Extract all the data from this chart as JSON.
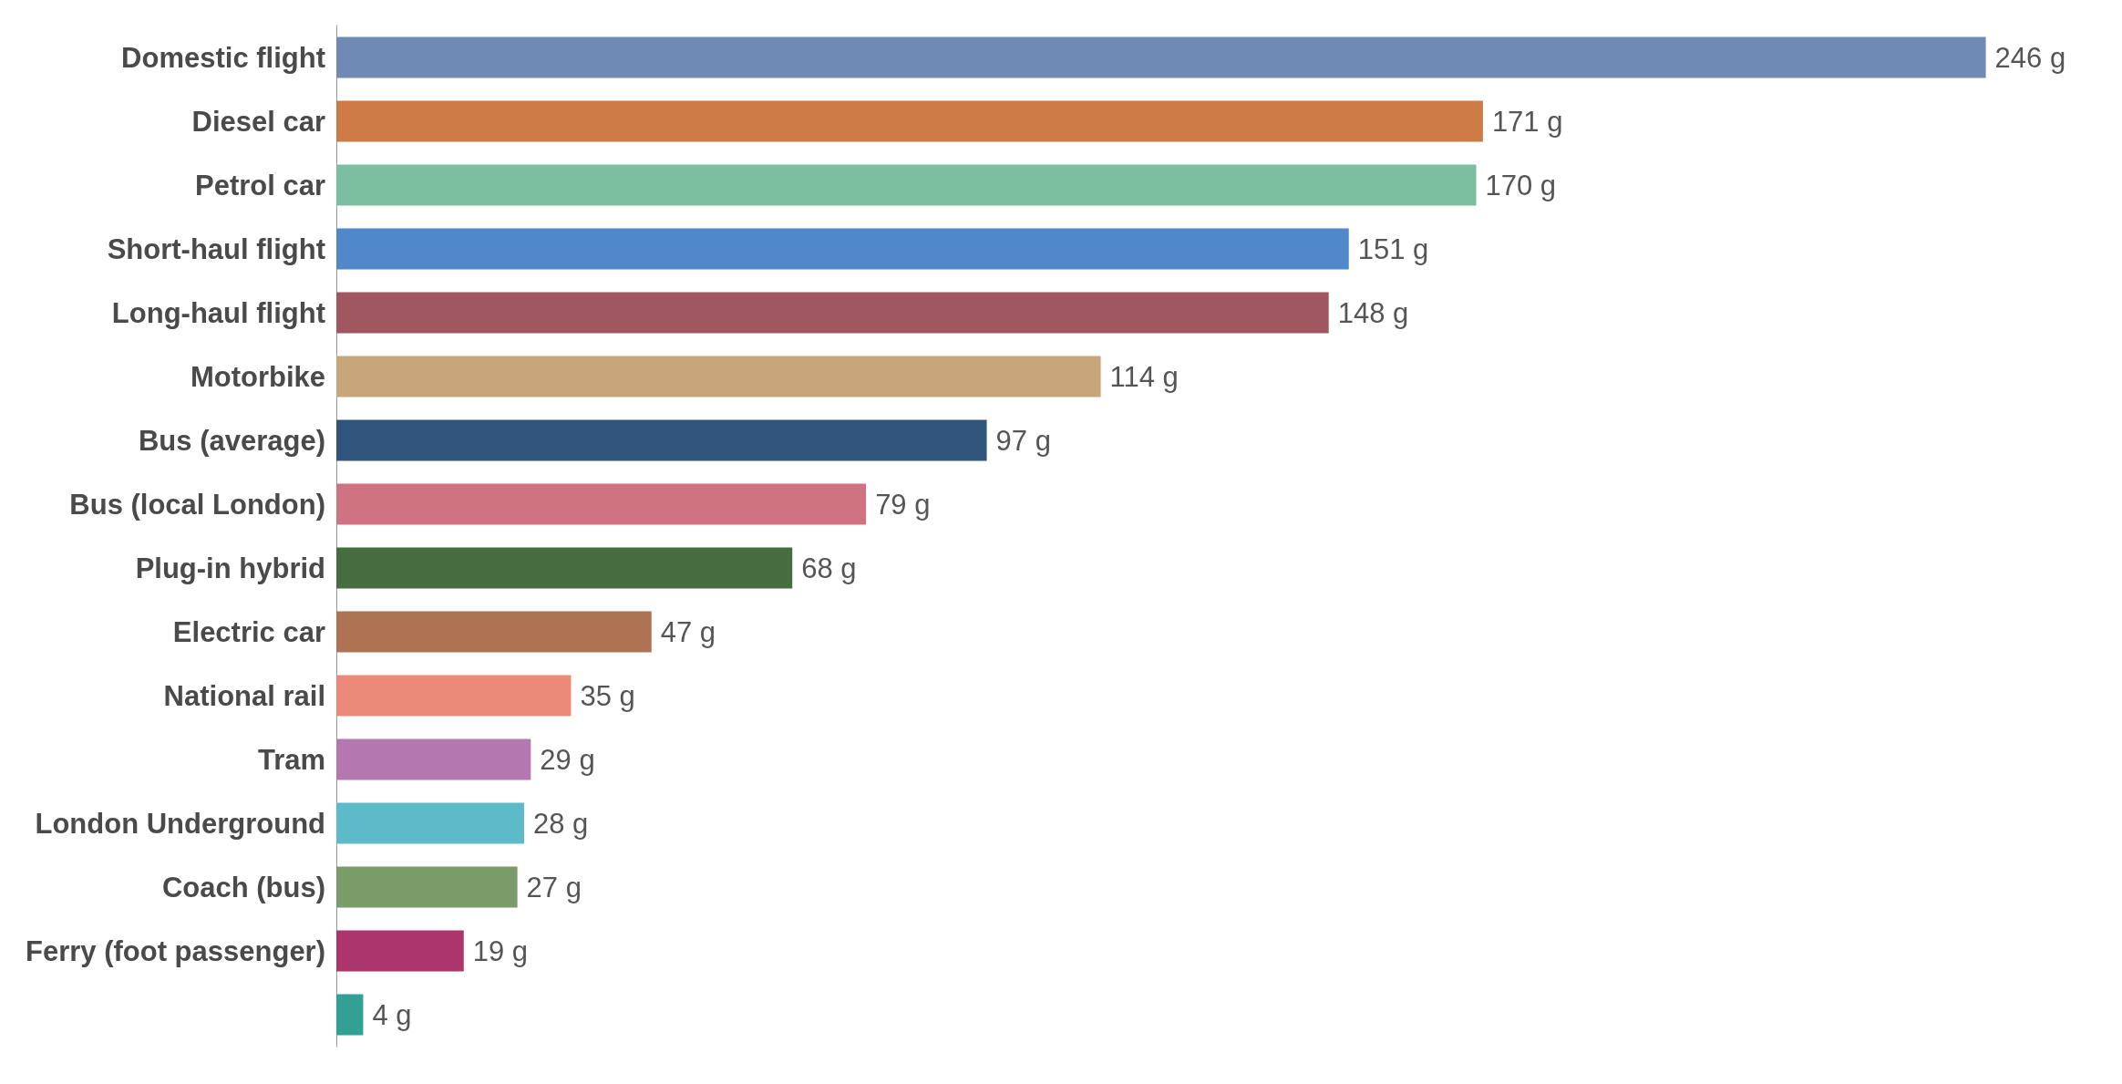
{
  "chart_data": {
    "type": "bar",
    "orientation": "horizontal",
    "categories": [
      "Domestic flight",
      "Diesel car",
      "Petrol car",
      "Short-haul flight",
      "Long-haul flight",
      "Motorbike",
      "Bus (average)",
      "Bus (local London)",
      "Plug-in hybrid",
      "Electric car",
      "National rail",
      "Tram",
      "London Underground",
      "Coach (bus)",
      "Ferry (foot passenger)",
      null
    ],
    "values": [
      246,
      171,
      170,
      151,
      148,
      114,
      97,
      79,
      68,
      47,
      35,
      29,
      28,
      27,
      19,
      4
    ],
    "value_labels": [
      "246 g",
      "171 g",
      "170 g",
      "151 g",
      "148 g",
      "114 g",
      "97 g",
      "79 g",
      "68 g",
      "47 g",
      "35 g",
      "29 g",
      "28 g",
      "27 g",
      "19 g",
      "4 g"
    ],
    "colors": [
      "#6f8ab5",
      "#cd7a45",
      "#7bbfa0",
      "#5188c9",
      "#a0575f",
      "#c8a67a",
      "#30547c",
      "#cf7282",
      "#476c3f",
      "#ae7352",
      "#ec8a7a",
      "#b577b0",
      "#5dbac8",
      "#7a9c68",
      "#ac356b",
      "#32a095"
    ]
  }
}
